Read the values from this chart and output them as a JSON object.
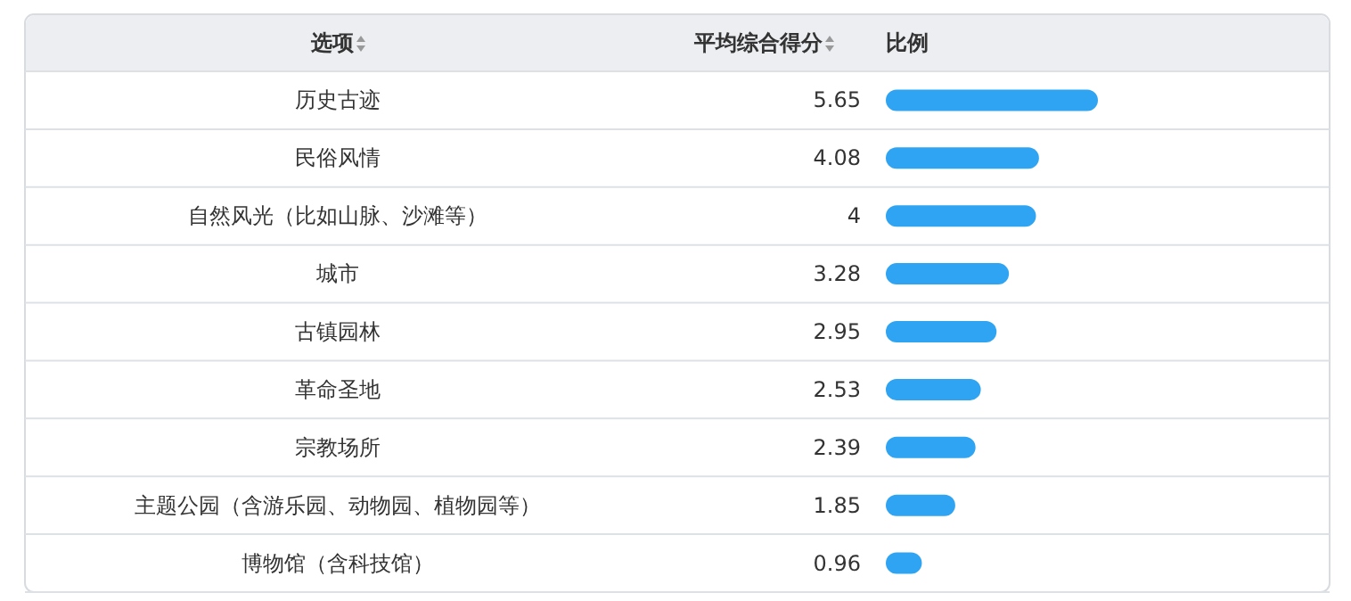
{
  "chart_data": {
    "type": "bar",
    "orientation": "horizontal",
    "ylabel": "选项",
    "xlabel": "比例",
    "annotations": [
      "平均综合得分"
    ],
    "categories": [
      "历史古迹",
      "民俗风情",
      "自然风光（比如山脉、沙滩等）",
      "城市",
      "古镇园林",
      "革命圣地",
      "宗教场所",
      "主题公园（含游乐园、动物园、植物园等）",
      "博物馆（含科技馆）"
    ],
    "values": [
      5.65,
      4.08,
      4,
      3.28,
      2.95,
      2.53,
      2.39,
      1.85,
      0.96
    ],
    "color": "#2fa4f2",
    "data_labels": true,
    "grid": "y"
  }
}
